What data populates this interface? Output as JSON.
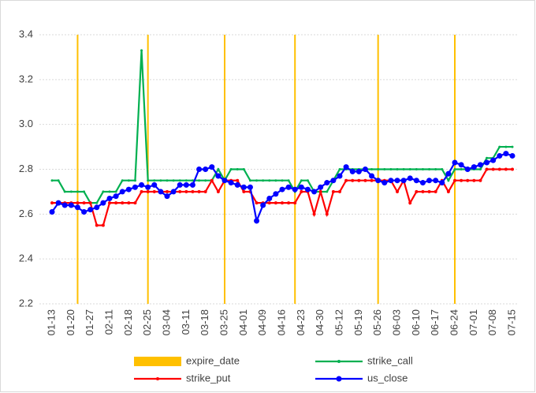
{
  "chart_data": {
    "type": "line",
    "categories": [
      "01-13",
      null,
      null,
      "01-20",
      null,
      null,
      "01-27",
      null,
      null,
      "02-11",
      null,
      null,
      "02-18",
      null,
      null,
      "02-25",
      null,
      null,
      "03-04",
      null,
      null,
      "03-11",
      null,
      null,
      "03-18",
      null,
      null,
      "03-25",
      null,
      null,
      "04-01",
      null,
      null,
      "04-09",
      null,
      null,
      "04-16",
      null,
      null,
      "04-23",
      null,
      null,
      "04-30",
      null,
      null,
      "05-12",
      null,
      null,
      "05-19",
      null,
      null,
      "05-26",
      null,
      null,
      "06-03",
      null,
      null,
      "06-10",
      null,
      null,
      "06-17",
      null,
      null,
      "06-24",
      null,
      null,
      "07-01",
      null,
      null,
      "07-08",
      null,
      null,
      "07-15"
    ],
    "series": [
      {
        "name": "expire_date",
        "type": "bar",
        "color": "#ffc000",
        "values": [
          null,
          null,
          null,
          null,
          3.4,
          null,
          null,
          null,
          null,
          null,
          null,
          null,
          null,
          null,
          null,
          3.4,
          null,
          null,
          null,
          null,
          null,
          null,
          null,
          null,
          null,
          null,
          null,
          3.4,
          null,
          null,
          null,
          null,
          null,
          null,
          null,
          null,
          null,
          null,
          3.4,
          null,
          null,
          null,
          null,
          null,
          null,
          null,
          null,
          null,
          null,
          null,
          null,
          3.4,
          null,
          null,
          null,
          null,
          null,
          null,
          null,
          null,
          null,
          null,
          null,
          3.4,
          null,
          null,
          null,
          null,
          null,
          null,
          null,
          null,
          null
        ]
      },
      {
        "name": "strike_call",
        "color": "#00b050",
        "values": [
          2.75,
          2.75,
          2.7,
          2.7,
          2.7,
          2.7,
          2.65,
          2.65,
          2.7,
          2.7,
          2.7,
          2.75,
          2.75,
          2.75,
          3.33,
          2.75,
          2.75,
          2.75,
          2.75,
          2.75,
          2.75,
          2.75,
          2.75,
          2.75,
          2.75,
          2.75,
          2.8,
          2.75,
          2.8,
          2.8,
          2.8,
          2.75,
          2.75,
          2.75,
          2.75,
          2.75,
          2.75,
          2.75,
          2.7,
          2.75,
          2.75,
          2.7,
          2.7,
          2.7,
          2.75,
          2.8,
          2.8,
          2.8,
          2.8,
          2.8,
          2.8,
          2.8,
          2.8,
          2.8,
          2.8,
          2.8,
          2.8,
          2.8,
          2.8,
          2.8,
          2.8,
          2.8,
          2.75,
          2.8,
          2.8,
          2.8,
          2.8,
          2.8,
          2.85,
          2.85,
          2.9,
          2.9,
          2.9
        ]
      },
      {
        "name": "strike_put",
        "color": "#ff0000",
        "values": [
          2.65,
          2.65,
          2.65,
          2.65,
          2.65,
          2.65,
          2.65,
          2.55,
          2.55,
          2.65,
          2.65,
          2.65,
          2.65,
          2.65,
          2.7,
          2.7,
          2.7,
          2.7,
          2.7,
          2.7,
          2.7,
          2.7,
          2.7,
          2.7,
          2.7,
          2.75,
          2.7,
          2.75,
          2.75,
          2.75,
          2.7,
          2.7,
          2.65,
          2.65,
          2.65,
          2.65,
          2.65,
          2.65,
          2.65,
          2.7,
          2.7,
          2.6,
          2.7,
          2.6,
          2.7,
          2.7,
          2.75,
          2.75,
          2.75,
          2.75,
          2.75,
          2.75,
          2.75,
          2.75,
          2.7,
          2.75,
          2.65,
          2.7,
          2.7,
          2.7,
          2.7,
          2.75,
          2.7,
          2.75,
          2.75,
          2.75,
          2.75,
          2.75,
          2.8,
          2.8,
          2.8,
          2.8,
          2.8
        ]
      },
      {
        "name": "us_close",
        "color": "#0000ff",
        "values": [
          2.61,
          2.65,
          2.64,
          2.64,
          2.63,
          2.61,
          2.62,
          2.63,
          2.65,
          2.67,
          2.68,
          2.7,
          2.71,
          2.72,
          2.73,
          2.72,
          2.73,
          2.7,
          2.68,
          2.7,
          2.73,
          2.73,
          2.73,
          2.8,
          2.8,
          2.81,
          2.77,
          2.75,
          2.74,
          2.73,
          2.72,
          2.72,
          2.57,
          2.64,
          2.67,
          2.69,
          2.71,
          2.72,
          2.71,
          2.72,
          2.71,
          2.7,
          2.72,
          2.74,
          2.75,
          2.77,
          2.81,
          2.79,
          2.79,
          2.8,
          2.77,
          2.75,
          2.74,
          2.75,
          2.75,
          2.75,
          2.76,
          2.75,
          2.74,
          2.75,
          2.75,
          2.74,
          2.78,
          2.83,
          2.82,
          2.8,
          2.81,
          2.82,
          2.83,
          2.84,
          2.86,
          2.87,
          2.86
        ]
      }
    ],
    "ylim": [
      2.2,
      3.4
    ],
    "yticks": [
      2.2,
      2.4,
      2.6,
      2.8,
      {
        "value": 3,
        "label": "3.0"
      },
      3.2,
      3.4
    ],
    "grid": true,
    "legend": "bottom"
  }
}
